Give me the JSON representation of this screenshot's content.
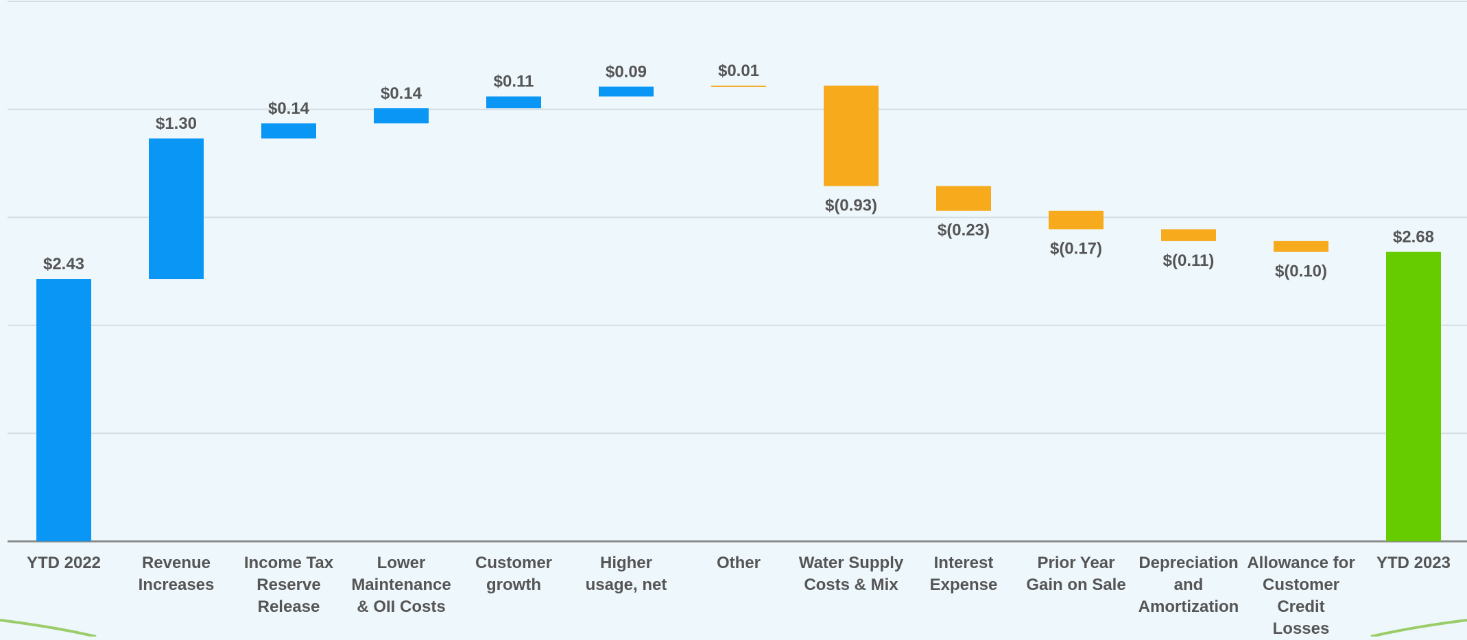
{
  "chart_data": {
    "type": "waterfall",
    "categories": [
      "YTD 2022",
      "Revenue Increases",
      "Income Tax Reserve Release",
      "Lower Maintenance & OII Costs",
      "Customer growth",
      "Higher usage, net",
      "Other",
      "Water Supply Costs & Mix",
      "Interest Expense",
      "Prior Year Gain on Sale",
      "Depreciation and Amortization",
      "Allowance for Customer Credit Losses",
      "YTD 2023"
    ],
    "values": [
      2.43,
      1.3,
      0.14,
      0.14,
      0.11,
      0.09,
      0.01,
      -0.93,
      -0.23,
      -0.17,
      -0.11,
      -0.1,
      2.68
    ],
    "value_labels": [
      "$2.43",
      "$1.30",
      "$0.14",
      "$0.14",
      "$0.11",
      "$0.09",
      "$0.01",
      "$(0.93)",
      "$(0.23)",
      "$(0.17)",
      "$(0.11)",
      "$(0.10)",
      "$2.68"
    ],
    "colors": [
      "#0a96f5",
      "#0a96f5",
      "#0a96f5",
      "#0a96f5",
      "#0a96f5",
      "#0a96f5",
      "#f6aa1c",
      "#f6aa1c",
      "#f6aa1c",
      "#f6aa1c",
      "#f6aa1c",
      "#f6aa1c",
      "#66cc00"
    ],
    "ylim": [
      0,
      5
    ],
    "yticks": [
      0,
      1,
      2,
      3,
      4,
      5
    ],
    "grid": true
  }
}
